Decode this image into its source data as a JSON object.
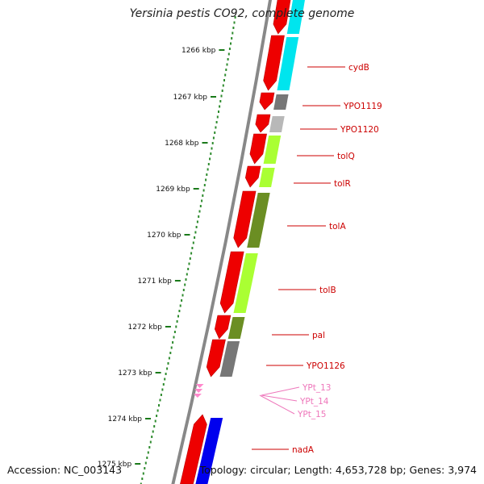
{
  "title": "Yersinia pestis CO92, complete genome",
  "accession": "Accession: NC_003143",
  "topology": "Topology: circular; Length: 4,653,728 bp; Genes: 3,974",
  "colors": {
    "backbone": "#888888",
    "gc_dots": "#2e8b2e",
    "gene_label": "#cc0000",
    "trna_label": "#ee77bb",
    "cds_red": "#ee0000",
    "cds_blue": "#0000ee",
    "cog_cyan": "#00e5ee",
    "cog_dark_gray": "#777777",
    "cog_light_gray": "#b8b8b8",
    "cog_lime": "#aaff33",
    "cog_olive": "#6b8e23"
  },
  "scale_ticks": [
    "1266 kbp",
    "1267 kbp",
    "1268 kbp",
    "1269 kbp",
    "1270 kbp",
    "1271 kbp",
    "1272 kbp",
    "1273 kbp",
    "1274 kbp",
    "1275 kbp"
  ],
  "features": [
    {
      "name": "cydB",
      "type": "CDS",
      "cog_color": "cyan"
    },
    {
      "name": "YPO1119",
      "type": "CDS",
      "cog_color": "dark_gray"
    },
    {
      "name": "YPO1120",
      "type": "CDS",
      "cog_color": "light_gray"
    },
    {
      "name": "tolQ",
      "type": "CDS",
      "cog_color": "lime"
    },
    {
      "name": "tolR",
      "type": "CDS",
      "cog_color": "lime"
    },
    {
      "name": "tolA",
      "type": "CDS",
      "cog_color": "olive"
    },
    {
      "name": "tolB",
      "type": "CDS",
      "cog_color": "lime"
    },
    {
      "name": "pal",
      "type": "CDS",
      "cog_color": "olive"
    },
    {
      "name": "YPO1126",
      "type": "CDS",
      "cog_color": "dark_gray"
    },
    {
      "name": "YPt_13",
      "type": "tRNA"
    },
    {
      "name": "YPt_14",
      "type": "tRNA"
    },
    {
      "name": "YPt_15",
      "type": "tRNA"
    },
    {
      "name": "nadA",
      "type": "CDS",
      "cog_color": "blue"
    }
  ]
}
